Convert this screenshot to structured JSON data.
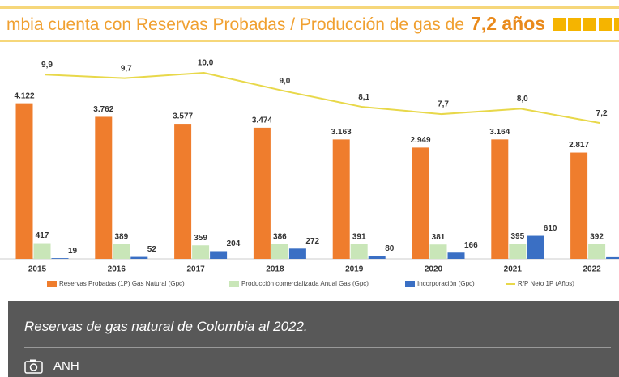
{
  "chart_data": {
    "type": "bar",
    "title": "mbia cuenta con Reservas Probadas / Producción de gas de",
    "title_highlight": "7,2 años",
    "categories": [
      "2015",
      "2016",
      "2017",
      "2018",
      "2019",
      "2020",
      "2021",
      "2022"
    ],
    "series": [
      {
        "name": "Reservas Probadas (1P) Gas Natural (Gpc)",
        "color": "#ef7d2d",
        "values": [
          4122,
          3762,
          3577,
          3474,
          3163,
          2949,
          3164,
          2817
        ],
        "value_labels": [
          "4.122",
          "3.762",
          "3.577",
          "3.474",
          "3.163",
          "2.949",
          "3.164",
          "2.817"
        ]
      },
      {
        "name": "Producción comercializada Anual Gas (Gpc)",
        "color": "#c9e6b8",
        "values": [
          417,
          389,
          359,
          386,
          391,
          381,
          395,
          392
        ]
      },
      {
        "name": "Incorporación (Gpc)",
        "color": "#3a6fc4",
        "values": [
          19,
          52,
          204,
          272,
          80,
          166,
          610,
          45
        ]
      },
      {
        "name": "R/P Neto 1P (Años)",
        "color": "#e8d84a",
        "type": "line",
        "axis": "y2",
        "values": [
          9.9,
          9.7,
          10.0,
          9.0,
          8.1,
          7.7,
          8.0,
          7.2
        ],
        "value_labels": [
          "9,9",
          "9,7",
          "10,0",
          "9,0",
          "8,1",
          "7,7",
          "8,0",
          "7,2"
        ]
      }
    ],
    "ylim": [
      0,
      4500
    ],
    "y2lim": [
      0,
      10
    ],
    "caption": "Reservas de gas natural de Colombia al 2022.",
    "credit": "ANH"
  }
}
